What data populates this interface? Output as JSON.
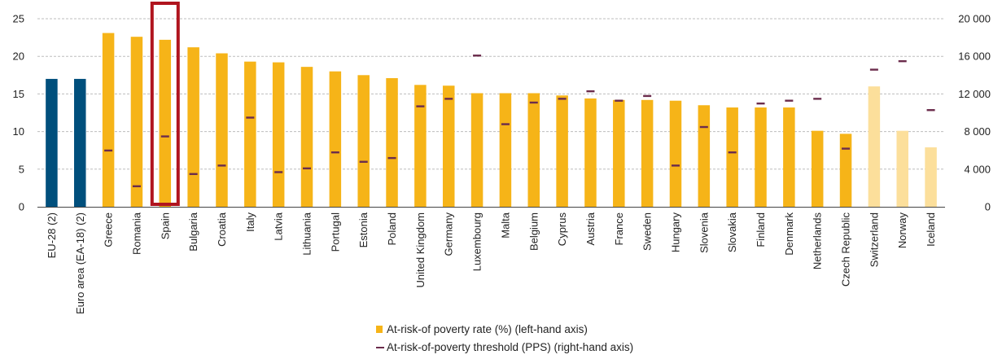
{
  "chart_data": {
    "type": "bar",
    "categories": [
      "EU-28 (2)",
      "Euro area (EA-18) (2)",
      "Greece",
      "Romania",
      "Spain",
      "Bulgaria",
      "Croatia",
      "Italy",
      "Latvia",
      "Lithuania",
      "Portugal",
      "Estonia",
      "Poland",
      "United Kingdom",
      "Germany",
      "Luxembourg",
      "Malta",
      "Belgium",
      "Cyprus",
      "Austria",
      "France",
      "Sweden",
      "Hungary",
      "Slovenia",
      "Slovakia",
      "Finland",
      "Denmark",
      "Netherlands",
      "Czech Republic",
      "Switzerland",
      "Norway",
      "Iceland"
    ],
    "series": [
      {
        "name": "At-risk-of poverty rate (%) (left-hand axis)",
        "axis": "left",
        "values": [
          17.0,
          17.0,
          23.1,
          22.6,
          22.2,
          21.2,
          20.4,
          19.3,
          19.2,
          18.6,
          18.0,
          17.5,
          17.1,
          16.2,
          16.1,
          15.1,
          15.1,
          15.1,
          14.8,
          14.4,
          14.2,
          14.2,
          14.1,
          13.5,
          13.2,
          13.2,
          13.2,
          10.1,
          9.7,
          16.0,
          10.1,
          7.9
        ]
      },
      {
        "name": "At-risk-of-poverty threshold (PPS) (right-hand axis)",
        "axis": "right",
        "values": [
          null,
          null,
          6000,
          2200,
          7500,
          3500,
          4400,
          9500,
          3700,
          4100,
          5800,
          4800,
          5200,
          10700,
          11500,
          16100,
          8800,
          11100,
          11500,
          12300,
          11300,
          11800,
          4400,
          8500,
          5800,
          11000,
          11300,
          11500,
          6200,
          14600,
          15500,
          10300
        ]
      }
    ],
    "colors": {
      "eu_aggregate": "#004f7c",
      "member_state": "#f6b418",
      "non_eu": "#fcdf9b",
      "threshold_marker": "#6b2c4c",
      "highlight": "#b0141e"
    },
    "bar_color_group": [
      "eu_aggregate",
      "eu_aggregate",
      "member_state",
      "member_state",
      "member_state",
      "member_state",
      "member_state",
      "member_state",
      "member_state",
      "member_state",
      "member_state",
      "member_state",
      "member_state",
      "member_state",
      "member_state",
      "member_state",
      "member_state",
      "member_state",
      "member_state",
      "member_state",
      "member_state",
      "member_state",
      "member_state",
      "member_state",
      "member_state",
      "member_state",
      "member_state",
      "member_state",
      "member_state",
      "non_eu",
      "non_eu",
      "non_eu"
    ],
    "highlighted_category": "Spain",
    "y_left": {
      "min": 0,
      "max": 25,
      "ticks": [
        "0",
        "5",
        "10",
        "15",
        "20",
        "25"
      ]
    },
    "y_right": {
      "min": 0,
      "max": 20000,
      "ticks": [
        "0",
        "4 000",
        "8 000",
        "12 000",
        "16 000",
        "20 000"
      ]
    },
    "grid": true,
    "legend_position": "bottom",
    "title": "",
    "xlabel": "",
    "ylabel": ""
  }
}
